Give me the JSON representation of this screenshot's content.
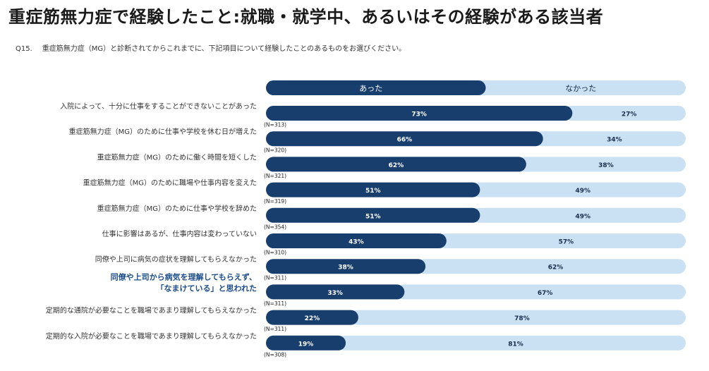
{
  "title": "重症筋無力症で経験したこと:就職・就学中、あるいはその経験がある該当者",
  "question": {
    "number": "Q15.",
    "text": "重症筋無力症（MG）と診断されてからこれまでに、下記項目について経験したことのあるものをお選びください。"
  },
  "colors": {
    "yes": "#183e6e",
    "no": "#c9e1f2",
    "highlight": "#1c4d8c"
  },
  "chart_data": {
    "type": "bar",
    "orientation": "horizontal",
    "stacked": true,
    "unit": "%",
    "xlim": [
      0,
      100
    ],
    "legend": {
      "position": "top",
      "yes": "あった",
      "no": "なかった"
    },
    "rows": [
      {
        "label_lines": [
          "入院によって、十分に仕事をすることができないことがあった"
        ],
        "yes": 73,
        "no": 27,
        "yes_label": "73%",
        "no_label": "27%",
        "n": "(N=313)",
        "highlight": false
      },
      {
        "label_lines": [
          "重症筋無力症（MG）のために仕事や学校を休む日が増えた"
        ],
        "yes": 66,
        "no": 34,
        "yes_label": "66%",
        "no_label": "34%",
        "n": "(N=320)",
        "highlight": false
      },
      {
        "label_lines": [
          "重症筋無力症（MG）のために働く時間を短くした"
        ],
        "yes": 62,
        "no": 38,
        "yes_label": "62%",
        "no_label": "38%",
        "n": "(N=321)",
        "highlight": false
      },
      {
        "label_lines": [
          "重症筋無力症（MG）のために職場や仕事内容を変えた"
        ],
        "yes": 51,
        "no": 49,
        "yes_label": "51%",
        "no_label": "49%",
        "n": "(N=319)",
        "highlight": false
      },
      {
        "label_lines": [
          "重症筋無力症（MG）のために仕事や学校を辞めた"
        ],
        "yes": 51,
        "no": 49,
        "yes_label": "51%",
        "no_label": "49%",
        "n": "(N=354)",
        "highlight": false
      },
      {
        "label_lines": [
          "仕事に影響はあるが、仕事内容は変わっていない"
        ],
        "yes": 43,
        "no": 57,
        "yes_label": "43%",
        "no_label": "57%",
        "n": "(N=310)",
        "highlight": false
      },
      {
        "label_lines": [
          "同僚や上司に病気の症状を理解してもらえなかった"
        ],
        "yes": 38,
        "no": 62,
        "yes_label": "38%",
        "no_label": "62%",
        "n": "(N=311)",
        "highlight": false
      },
      {
        "label_lines": [
          "同僚や上司から病気を理解してもらえず、",
          "「なまけている」と思われた"
        ],
        "yes": 33,
        "no": 67,
        "yes_label": "33%",
        "no_label": "67%",
        "n": "(N=311)",
        "highlight": true
      },
      {
        "label_lines": [
          "定期的な通院が必要なことを職場であまり理解してもらえなかった"
        ],
        "yes": 22,
        "no": 78,
        "yes_label": "22%",
        "no_label": "78%",
        "n": "(N=311)",
        "highlight": false
      },
      {
        "label_lines": [
          "定期的な入院が必要なことを職場であまり理解してもらえなかった"
        ],
        "yes": 19,
        "no": 81,
        "yes_label": "19%",
        "no_label": "81%",
        "n": "(N=308)",
        "highlight": false
      }
    ]
  }
}
